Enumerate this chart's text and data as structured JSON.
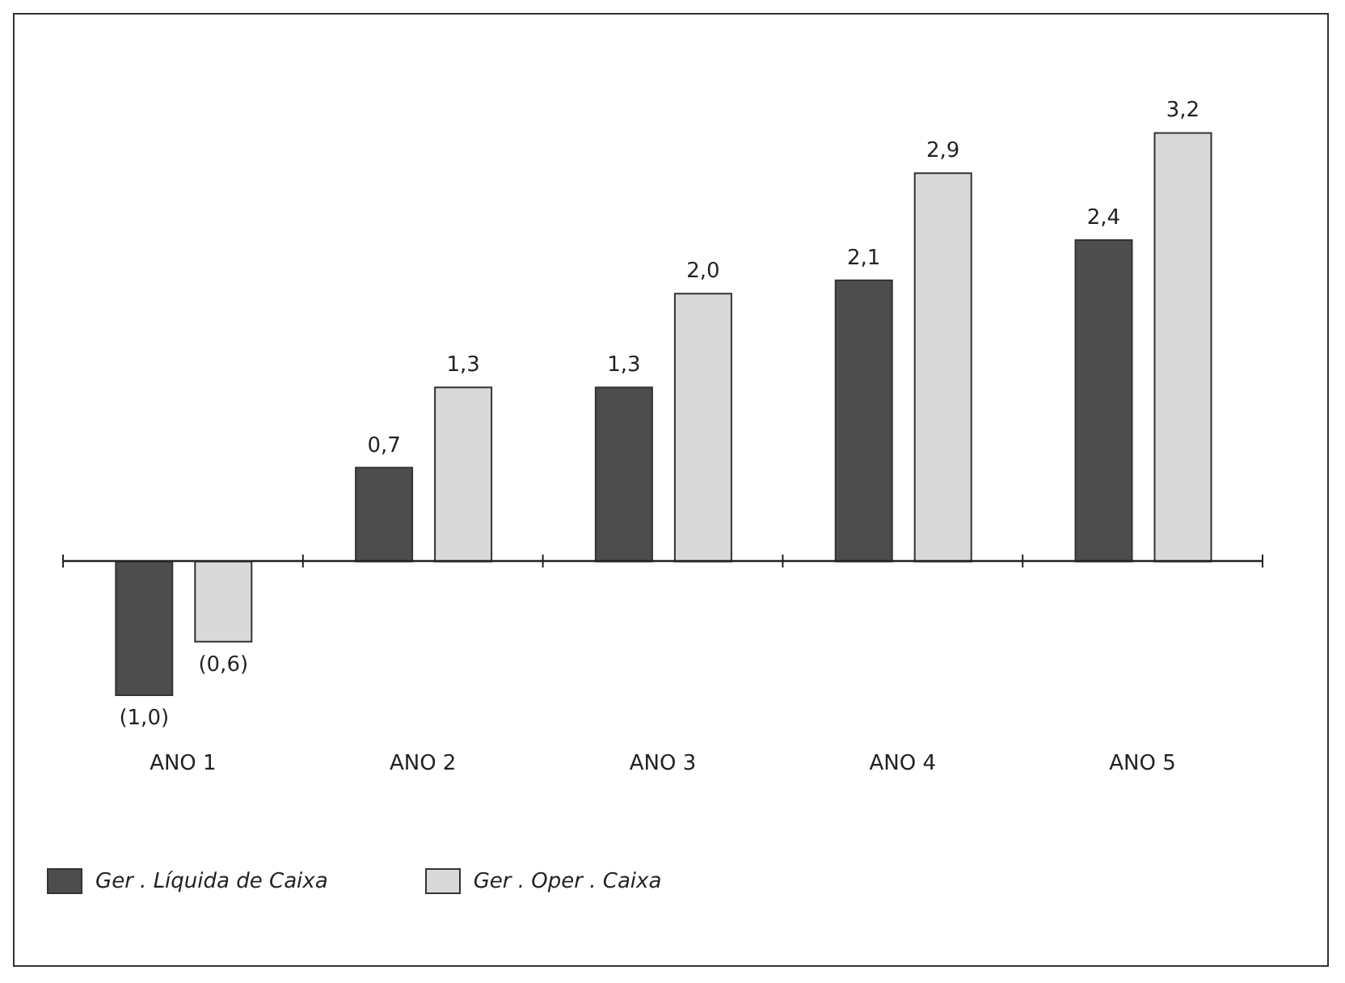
{
  "chart_data": {
    "type": "bar",
    "categories": [
      "ANO 1",
      "ANO 2",
      "ANO 3",
      "ANO 4",
      "ANO 5"
    ],
    "series": [
      {
        "name": "Ger . Líquida de Caixa",
        "color": "#4d4d4d",
        "values": [
          -1.0,
          0.7,
          1.3,
          2.1,
          2.4
        ],
        "value_labels": [
          "(1,0)",
          "0,7",
          "1,3",
          "2,1",
          "2,4"
        ]
      },
      {
        "name": "Ger . Oper . Caixa",
        "color": "#d9d9d9",
        "values": [
          -0.6,
          1.3,
          2.0,
          2.9,
          3.2
        ],
        "value_labels": [
          "(0,6)",
          "1,3",
          "2,0",
          "2,9",
          "3,2"
        ]
      }
    ],
    "legend": "bottom left"
  }
}
